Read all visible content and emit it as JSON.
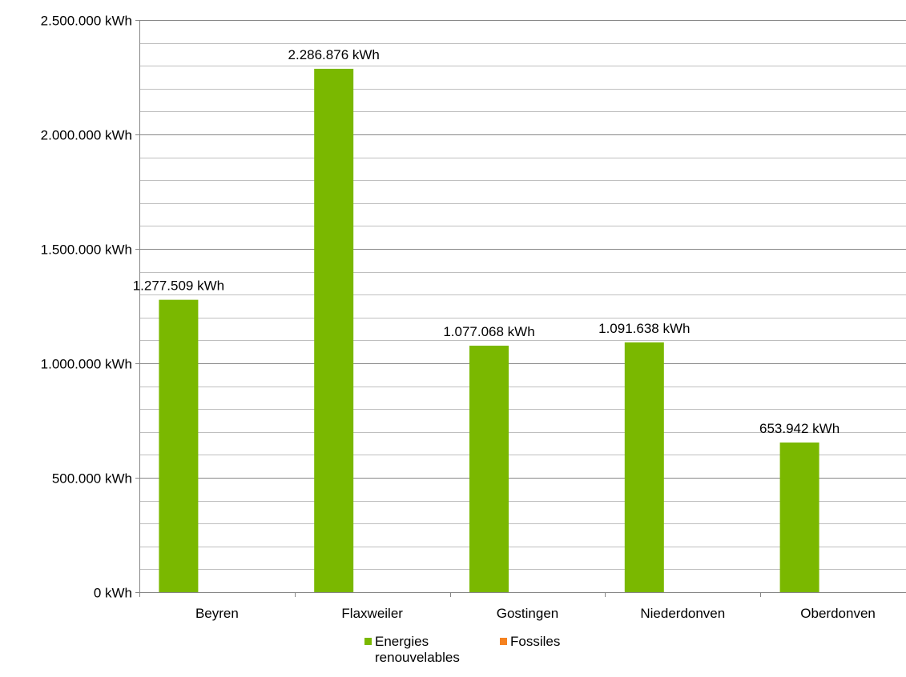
{
  "chart_data": {
    "type": "bar",
    "categories": [
      "Beyren",
      "Flaxweiler",
      "Gostingen",
      "Niederdonven",
      "Oberdonven"
    ],
    "series": [
      {
        "name": "Energies renouvelables",
        "color": "#7ab800",
        "values": [
          1277509,
          2286876,
          1077068,
          1091638,
          653942
        ],
        "labels": [
          "1.277.509 kWh",
          "2.286.876 kWh",
          "1.077.068 kWh",
          "1.091.638 kWh",
          "653.942 kWh"
        ]
      },
      {
        "name": "Fossiles",
        "color": "#f58220",
        "values": [
          0,
          0,
          0,
          0,
          0
        ]
      }
    ],
    "ylim": [
      0,
      2500000
    ],
    "yticks": [
      0,
      500000,
      1000000,
      1500000,
      2000000,
      2500000
    ],
    "ytick_labels": [
      "0 kWh",
      "500.000 kWh",
      "1.000.000 kWh",
      "1.500.000 kWh",
      "2.000.000 kWh",
      "2.500.000 kWh"
    ],
    "minor_grid_step": 100000,
    "grid": true,
    "legend": "bottom",
    "title": "",
    "xlabel": "",
    "ylabel": ""
  },
  "legend": {
    "item1_label": "Energies renouvelables",
    "item2_label": "Fossiles"
  }
}
